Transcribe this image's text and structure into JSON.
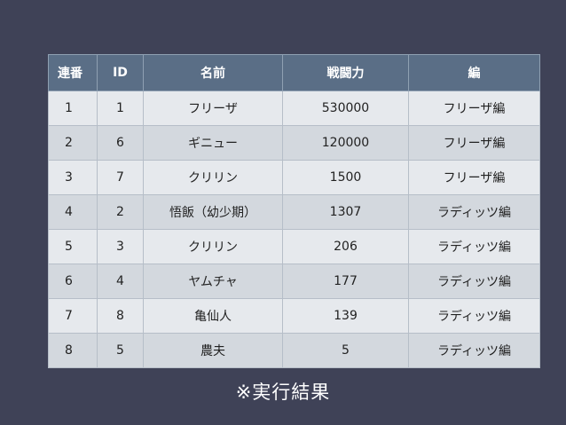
{
  "table": {
    "headers": [
      "連番",
      "ID",
      "名前",
      "戦闘力",
      "編"
    ],
    "rows": [
      [
        "1",
        "1",
        "フリーザ",
        "530000",
        "フリーザ編"
      ],
      [
        "2",
        "6",
        "ギニュー",
        "120000",
        "フリーザ編"
      ],
      [
        "3",
        "7",
        "クリリン",
        "1500",
        "フリーザ編"
      ],
      [
        "4",
        "2",
        "悟飯（幼少期）",
        "1307",
        "ラディッツ編"
      ],
      [
        "5",
        "3",
        "クリリン",
        "206",
        "ラディッツ編"
      ],
      [
        "6",
        "4",
        "ヤムチャ",
        "177",
        "ラディッツ編"
      ],
      [
        "7",
        "8",
        "亀仙人",
        "139",
        "ラディッツ編"
      ],
      [
        "8",
        "5",
        "農夫",
        "5",
        "ラディッツ編"
      ]
    ]
  },
  "note": "※実行結果",
  "colors": {
    "background": "#3f4257",
    "header": "#5a6e86",
    "row_light": "#e6e9ed",
    "row_dark": "#d3d8de"
  }
}
